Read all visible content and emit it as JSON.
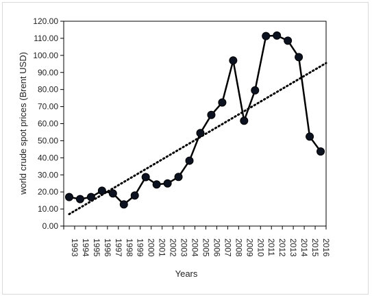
{
  "chart_data": {
    "type": "line",
    "title": "",
    "xlabel": "Years",
    "ylabel": "world crude spot prices (Brent USD)",
    "categories": [
      "1993",
      "1994",
      "1995",
      "1996",
      "1997",
      "1998",
      "1999",
      "2000",
      "2001",
      "2002",
      "2003",
      "2004",
      "2005",
      "2006",
      "2007",
      "2008",
      "2009",
      "2010",
      "2011",
      "2012",
      "2013",
      "2014",
      "2015",
      "2016"
    ],
    "series": [
      {
        "values": [
          17.0,
          15.8,
          17.0,
          20.7,
          19.1,
          12.7,
          17.9,
          28.7,
          24.4,
          25.0,
          28.8,
          38.3,
          54.5,
          65.1,
          72.4,
          97.0,
          61.7,
          79.5,
          111.3,
          111.6,
          108.6,
          99.0,
          52.4,
          43.7
        ],
        "color": "#000000",
        "marker_fill": "#0d1220"
      }
    ],
    "trendline": {
      "style": "dotted",
      "color": "#000000",
      "start_value": 7.0,
      "end_value": 95.5
    },
    "yticks": [
      "0.00",
      "10.00",
      "20.00",
      "30.00",
      "40.00",
      "50.00",
      "60.00",
      "70.00",
      "80.00",
      "90.00",
      "100.00",
      "110.00",
      "120.00"
    ],
    "ylim": [
      0,
      120
    ],
    "grid": false,
    "legend": "none"
  }
}
